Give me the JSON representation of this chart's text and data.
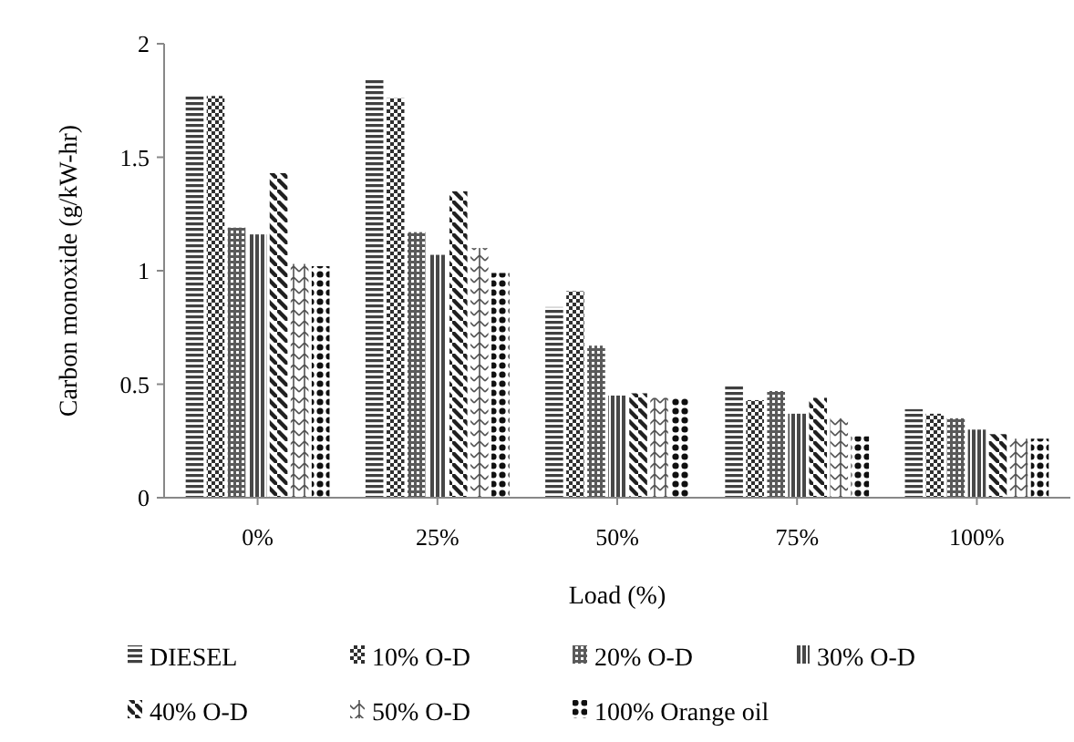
{
  "chart_data": {
    "type": "bar",
    "xlabel": "Load (%)",
    "ylabel": "Carbon monoxide (g/kW-hr)",
    "categories": [
      "0%",
      "25%",
      "50%",
      "75%",
      "100%"
    ],
    "series": [
      {
        "name": "DIESEL",
        "color": "#404040",
        "values": [
          1.77,
          1.84,
          0.84,
          0.49,
          0.39
        ]
      },
      {
        "name": "10% O-D",
        "color": "#303030",
        "values": [
          1.77,
          1.76,
          0.91,
          0.43,
          0.37
        ]
      },
      {
        "name": "20% O-D",
        "color": "#5a5a5a",
        "values": [
          1.19,
          1.17,
          0.67,
          0.47,
          0.35
        ]
      },
      {
        "name": "30% O-D",
        "color": "#484848",
        "values": [
          1.16,
          1.07,
          0.45,
          0.37,
          0.3
        ]
      },
      {
        "name": "40% O-D",
        "color": "#202020",
        "values": [
          1.43,
          1.35,
          0.46,
          0.44,
          0.28
        ]
      },
      {
        "name": "50% O-D",
        "color": "#505050",
        "values": [
          1.03,
          1.1,
          0.44,
          0.35,
          0.26
        ]
      },
      {
        "name": "100% Orange oil",
        "color": "#101010",
        "values": [
          1.02,
          0.99,
          0.44,
          0.27,
          0.26
        ]
      }
    ],
    "ylim": [
      0,
      2
    ],
    "yticks": [
      0,
      0.5,
      1,
      1.5,
      2
    ],
    "grid": false,
    "legend": "bottom"
  }
}
